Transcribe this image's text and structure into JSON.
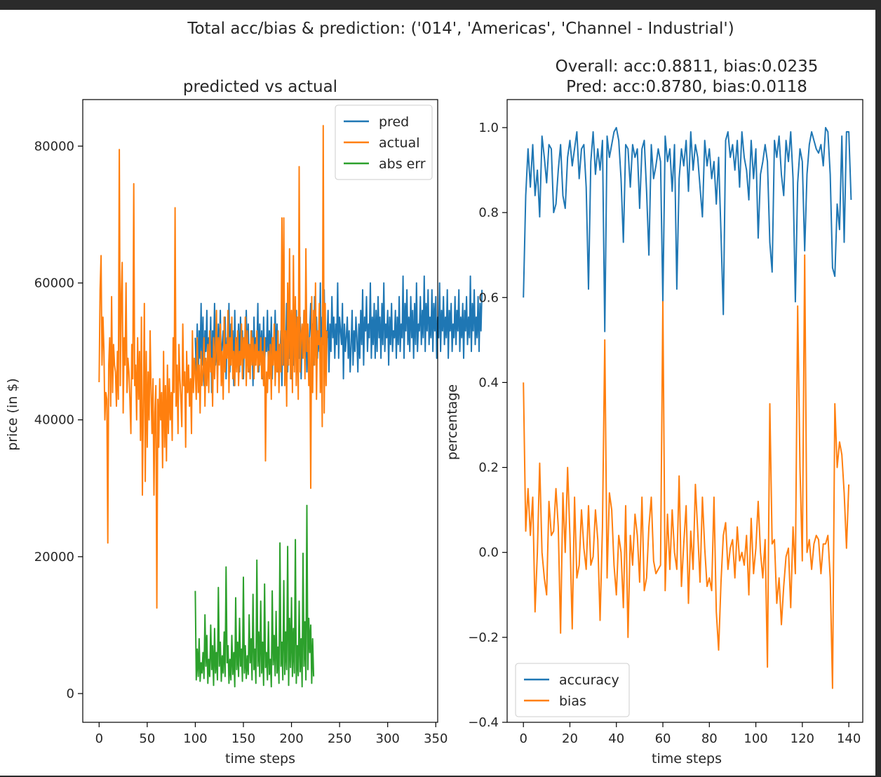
{
  "figure": {
    "suptitle": "Total acc/bias & prediction: ('014', 'Americas', 'Channel - Industrial')"
  },
  "chart_data": [
    {
      "type": "line",
      "title": "predicted vs actual",
      "xlabel": "time steps",
      "ylabel": "price (in $)",
      "xlim": [
        -17,
        352
      ],
      "ylim": [
        -4200,
        86800
      ],
      "xticks": [
        0,
        50,
        100,
        150,
        200,
        250,
        300,
        350
      ],
      "yticks": [
        0,
        20000,
        40000,
        60000,
        80000
      ],
      "legend_position": "upper right",
      "series": [
        {
          "name": "pred",
          "color": "#1f77b4",
          "x_start": 100,
          "values": [
            52000,
            47000,
            54000,
            46000,
            53000,
            49000,
            57000,
            48000,
            55000,
            45000,
            53000,
            50000,
            56000,
            47000,
            52000,
            49000,
            55000,
            44000,
            53000,
            50000,
            57000,
            48000,
            52000,
            46000,
            54000,
            49000,
            56000,
            47000,
            51000,
            53000,
            48000,
            55000,
            46000,
            52000,
            50000,
            57000,
            47000,
            54000,
            49000,
            53000,
            45000,
            56000,
            48000,
            52000,
            50000,
            54000,
            47000,
            55000,
            49000,
            53000,
            46000,
            52000,
            50000,
            56000,
            48000,
            54000,
            47000,
            51000,
            49000,
            53000,
            45000,
            55000,
            48000,
            52000,
            50000,
            57000,
            47000,
            54000,
            49000,
            53000,
            46000,
            55000,
            48000,
            52000,
            50000,
            56000,
            47000,
            53000,
            49000,
            55000,
            46000,
            52000,
            50000,
            56000,
            48000,
            54000,
            47000,
            51000,
            49000,
            53000,
            45000,
            55000,
            48000,
            52000,
            50000,
            57000,
            47000,
            54000,
            49000,
            53000,
            46000,
            55000,
            48000,
            52000,
            50000,
            56000,
            47000,
            53000,
            49000,
            55000,
            46000,
            52000,
            50000,
            56000,
            48000,
            54000,
            47000,
            51000,
            49000,
            53000,
            57000,
            50000,
            54000,
            48000,
            58000,
            51000,
            55000,
            49000,
            53000,
            50000,
            60000,
            46000,
            55000,
            51000,
            59000,
            48000,
            53000,
            52000,
            56000,
            47000,
            54000,
            50000,
            58000,
            52000,
            55000,
            49000,
            54000,
            51000,
            60000,
            49000,
            55000,
            53000,
            51000,
            57000,
            46000,
            54000,
            50000,
            52000,
            55000,
            49000,
            53000,
            47000,
            51000,
            56000,
            48000,
            53000,
            50000,
            55000,
            52000,
            47000,
            54000,
            49000,
            56000,
            51000,
            59000,
            48000,
            55000,
            53000,
            58000,
            50000,
            54000,
            52000,
            60000,
            49000,
            55000,
            51000,
            57000,
            49000,
            56000,
            50000,
            58000,
            52000,
            55000,
            49000,
            57000,
            51000,
            60000,
            50000,
            54000,
            52000,
            56000,
            48000,
            55000,
            51000,
            57000,
            50000,
            53000,
            52000,
            56000,
            49000,
            55000,
            51000,
            58000,
            50000,
            54000,
            52000,
            61000,
            49000,
            57000,
            53000,
            59000,
            51000,
            55000,
            50000,
            58000,
            52000,
            56000,
            49000,
            57000,
            51000,
            60000,
            50000,
            54000,
            53000,
            58000,
            51000,
            56000,
            52000,
            61000,
            50000,
            57000,
            53000,
            59000,
            51000,
            55000,
            52000,
            59000,
            50000,
            57000,
            53000,
            58000,
            49000,
            55000,
            52000,
            60000,
            50000,
            56000,
            53000,
            58000,
            51000,
            55000,
            52000,
            59000,
            49000,
            56000,
            53000,
            57000,
            50000,
            54000,
            52000,
            58000,
            51000,
            56000,
            53000,
            59000,
            50000,
            55000,
            52000,
            57000,
            49000,
            56000,
            53000,
            58000,
            51000,
            55000,
            52000,
            61000,
            50000,
            57000,
            53000,
            59000,
            51000,
            55000,
            52000,
            58000,
            50000,
            57000,
            53000,
            59000
          ]
        },
        {
          "name": "actual",
          "color": "#ff7f0e",
          "x_start": 0,
          "values": [
            45500,
            59000,
            64000,
            48000,
            55000,
            50000,
            40000,
            44000,
            43000,
            22000,
            48000,
            52000,
            42000,
            58000,
            44000,
            51000,
            48000,
            47000,
            42000,
            50000,
            43000,
            79500,
            45000,
            58000,
            63000,
            41000,
            52000,
            48000,
            60000,
            44000,
            49000,
            47000,
            43000,
            38000,
            51000,
            46000,
            74500,
            45000,
            48000,
            40000,
            52000,
            43000,
            50000,
            37000,
            55000,
            29000,
            42000,
            57000,
            31000,
            50000,
            36000,
            47000,
            40000,
            53000,
            44000,
            38000,
            46000,
            29000,
            41000,
            45000,
            12500,
            43000,
            36000,
            46000,
            40000,
            44000,
            33000,
            50000,
            36000,
            45000,
            34000,
            48000,
            38000,
            46000,
            40000,
            44000,
            37000,
            52000,
            44000,
            71000,
            42000,
            48000,
            38000,
            51000,
            46000,
            43000,
            39000,
            54000,
            45000,
            47000,
            36000,
            50000,
            44000,
            48000,
            42000,
            46000,
            38000,
            53000,
            44000,
            49000,
            47000,
            43000,
            52000,
            44000,
            48000,
            41000,
            50000,
            45000,
            47000,
            52000,
            42000,
            49000,
            45000,
            51000,
            44000,
            53000,
            47000,
            49000,
            42000,
            52000,
            46000,
            50000,
            56000,
            44000,
            52000,
            48000,
            54000,
            45000,
            50000,
            43000,
            55000,
            47000,
            51000,
            49000,
            56000,
            44000,
            52000,
            48000,
            55000,
            46000,
            50000,
            45000,
            52000,
            47000,
            53000,
            45000,
            50000,
            48000,
            54000,
            46000,
            52000,
            49000,
            55000,
            45000,
            53000,
            47000,
            51000,
            46000,
            53000,
            48000,
            52000,
            46000,
            51000,
            48000,
            53000,
            47000,
            50000,
            48000,
            52000,
            46000,
            50000,
            45000,
            52000,
            34000,
            47000,
            44000,
            50000,
            46000,
            51000,
            43000,
            52000,
            48000,
            54000,
            45000,
            50000,
            47000,
            53000,
            44000,
            51000,
            47000,
            69500,
            48000,
            69500,
            45000,
            53000,
            42000,
            60000,
            48000,
            65000,
            46000,
            56000,
            44000,
            64000,
            47000,
            58000,
            45000,
            55000,
            43000,
            77000,
            47000,
            52000,
            54000,
            49000,
            56000,
            46000,
            65000,
            50000,
            54000,
            45000,
            52000,
            30000,
            58000,
            44000,
            56000,
            48000,
            60000,
            43000,
            53000,
            51000,
            57000,
            44000,
            52000,
            39000,
            83000,
            41000,
            57000,
            45000,
            53000
          ]
        },
        {
          "name": "abs err",
          "color": "#2ca02c",
          "x_start": 100,
          "values": [
            15000,
            2000,
            6500,
            2500,
            8000,
            1800,
            4500,
            3000,
            6000,
            2200,
            11500,
            4000,
            8500,
            1500,
            5000,
            2500,
            10000,
            3500,
            7000,
            1200,
            9500,
            3000,
            6000,
            2000,
            15500,
            4000,
            7500,
            1800,
            5500,
            3000,
            9000,
            2500,
            18500,
            4500,
            7000,
            1500,
            5000,
            2000,
            8500,
            2800,
            6000,
            1000,
            14000,
            3500,
            7500,
            2500,
            11000,
            4000,
            6500,
            1800,
            17000,
            3000,
            7000,
            2200,
            5500,
            2800,
            11500,
            4500,
            8000,
            2000,
            14500,
            3500,
            6500,
            1500,
            19500,
            4000,
            9000,
            2500,
            13500,
            3000,
            7500,
            1200,
            16000,
            3800,
            6000,
            2000,
            10500,
            2800,
            5000,
            1000,
            15000,
            4200,
            8500,
            2600,
            12000,
            3000,
            6800,
            1500,
            22000,
            4000,
            7500,
            2000,
            16500,
            2800,
            9000,
            3500,
            21500,
            1200,
            11000,
            3800,
            14000,
            2500,
            9500,
            3000,
            22500,
            1500,
            7000,
            2600,
            13500,
            3200,
            8000,
            1000,
            20500,
            4000,
            10500,
            2000,
            27500,
            3500,
            11000,
            6000,
            10000,
            1500,
            8000,
            2500
          ]
        }
      ]
    },
    {
      "type": "line",
      "title": "Overall: acc:0.8811, bias:0.0235",
      "subtitle": "Pred: acc:0.8780, bias:0.0118",
      "xlabel": "time steps",
      "ylabel": "percentage",
      "xlim": [
        -7,
        146
      ],
      "ylim": [
        -0.4,
        1.066
      ],
      "xticks": [
        0,
        20,
        40,
        60,
        80,
        100,
        120,
        140
      ],
      "yticks": [
        -0.4,
        -0.2,
        0.0,
        0.2,
        0.4,
        0.6,
        0.8,
        1.0
      ],
      "legend_position": "lower left",
      "series": [
        {
          "name": "accuracy",
          "color": "#1f77b4",
          "x_start": 0,
          "values": [
            0.6,
            0.84,
            0.95,
            0.86,
            0.96,
            0.84,
            0.9,
            0.79,
            0.98,
            0.93,
            0.87,
            0.96,
            0.95,
            0.8,
            0.82,
            0.9,
            0.96,
            0.84,
            0.81,
            0.93,
            0.97,
            0.91,
            0.95,
            0.99,
            0.88,
            0.95,
            0.96,
            0.86,
            0.62,
            0.92,
            0.99,
            0.89,
            0.95,
            0.9,
            0.97,
            0.52,
            0.98,
            0.93,
            0.96,
            0.99,
            1.0,
            0.97,
            0.88,
            0.73,
            0.96,
            0.95,
            0.86,
            0.96,
            0.93,
            0.95,
            0.81,
            0.95,
            0.97,
            0.85,
            0.7,
            0.96,
            0.88,
            0.91,
            0.95,
            0.92,
            0.59,
            0.98,
            0.92,
            0.95,
            0.85,
            0.96,
            0.62,
            0.88,
            0.95,
            0.91,
            0.97,
            0.85,
            0.99,
            0.9,
            0.96,
            0.93,
            0.86,
            0.79,
            0.97,
            0.91,
            0.95,
            0.88,
            0.92,
            0.82,
            0.93,
            0.75,
            0.56,
            0.97,
            0.99,
            0.93,
            0.96,
            0.9,
            0.97,
            0.86,
            0.99,
            0.93,
            0.9,
            0.83,
            0.97,
            0.88,
            0.95,
            0.74,
            0.89,
            0.92,
            0.96,
            0.92,
            0.73,
            0.66,
            0.97,
            0.93,
            0.98,
            0.89,
            0.84,
            0.97,
            0.92,
            0.99,
            0.88,
            0.59,
            0.87,
            0.95,
            0.92,
            0.71,
            0.89,
            0.96,
            0.99,
            0.97,
            0.95,
            0.94,
            0.96,
            0.91,
            1.0,
            0.99,
            0.89,
            0.67,
            0.65,
            0.82,
            0.76,
            0.98,
            0.73,
            0.99,
            0.99,
            0.83
          ]
        },
        {
          "name": "bias",
          "color": "#ff7f0e",
          "x_start": 0,
          "values": [
            0.4,
            0.05,
            0.15,
            0.04,
            0.13,
            -0.14,
            0.0,
            0.21,
            0.0,
            -0.06,
            -0.1,
            0.12,
            0.04,
            0.05,
            0.15,
            0.06,
            -0.19,
            0.14,
            0.0,
            0.2,
            0.04,
            -0.18,
            0.13,
            -0.06,
            -0.03,
            0.1,
            0.01,
            -0.04,
            0.11,
            -0.03,
            -0.01,
            0.1,
            0.03,
            -0.16,
            0.06,
            0.5,
            -0.06,
            0.14,
            0.1,
            -0.03,
            -0.1,
            0.04,
            0.0,
            -0.13,
            0.11,
            -0.2,
            0.04,
            -0.03,
            0.09,
            0.04,
            -0.07,
            0.13,
            -0.09,
            -0.06,
            0.06,
            0.13,
            -0.02,
            -0.05,
            -0.04,
            -0.03,
            0.59,
            -0.09,
            0.09,
            -0.04,
            0.1,
            0.0,
            -0.04,
            0.18,
            -0.08,
            0.02,
            0.11,
            -0.12,
            0.05,
            -0.04,
            0.16,
            0.05,
            -0.07,
            0.13,
            0.01,
            -0.08,
            -0.06,
            -0.09,
            0.13,
            -0.14,
            -0.23,
            -0.07,
            0.04,
            0.07,
            -0.04,
            0.01,
            0.03,
            -0.06,
            0.06,
            -0.02,
            0.0,
            -0.03,
            0.04,
            -0.1,
            0.08,
            -0.05,
            0.01,
            0.12,
            0.0,
            -0.06,
            0.03,
            -0.27,
            0.35,
            0.02,
            0.03,
            -0.12,
            -0.06,
            -0.17,
            -0.08,
            -0.01,
            0.01,
            -0.13,
            0.06,
            -0.05,
            0.58,
            0.2,
            -0.02,
            0.7,
            0.0,
            0.03,
            -0.04,
            0.02,
            0.04,
            0.03,
            -0.05,
            0.02,
            0.02,
            0.04,
            -0.06,
            -0.32,
            0.35,
            0.2,
            0.26,
            0.23,
            0.14,
            0.01,
            0.16
          ]
        }
      ]
    }
  ]
}
